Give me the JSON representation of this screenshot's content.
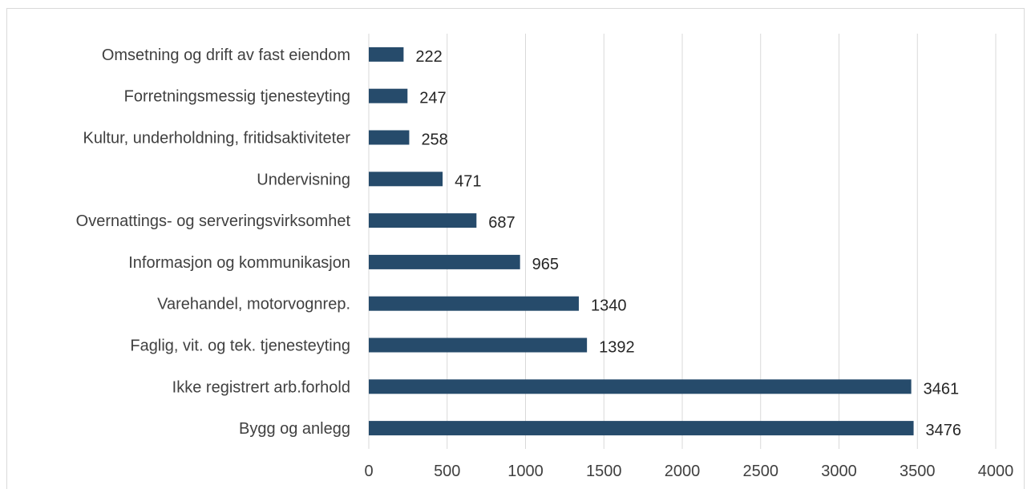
{
  "chart_data": {
    "type": "bar",
    "orientation": "horizontal",
    "categories": [
      "Omsetning og drift av fast eiendom",
      "Forretningsmessig tjenesteyting",
      "Kultur, underholdning, fritidsaktiviteter",
      "Undervisning",
      "Overnattings- og serveringsvirksomhet",
      "Informasjon og kommunikasjon",
      "Varehandel, motorvognrep.",
      "Faglig, vit. og tek. tjenesteyting",
      "Ikke registrert arb.forhold",
      "Bygg og anlegg"
    ],
    "values": [
      222,
      247,
      258,
      471,
      687,
      965,
      1340,
      1392,
      3461,
      3476
    ],
    "data_labels": [
      "222",
      "247",
      "258",
      "471",
      "687",
      "965",
      "1340",
      "1392",
      "3461",
      "3476"
    ],
    "x_ticks": [
      "0",
      "500",
      "1000",
      "1500",
      "2000",
      "2500",
      "3000",
      "3500",
      "4000"
    ],
    "xlim": [
      0,
      4000
    ],
    "grid": "vertical",
    "legend": "none",
    "bar_color": "#264b6b",
    "grid_color": "#d9d9d9",
    "title": "",
    "xlabel": "",
    "ylabel": ""
  }
}
